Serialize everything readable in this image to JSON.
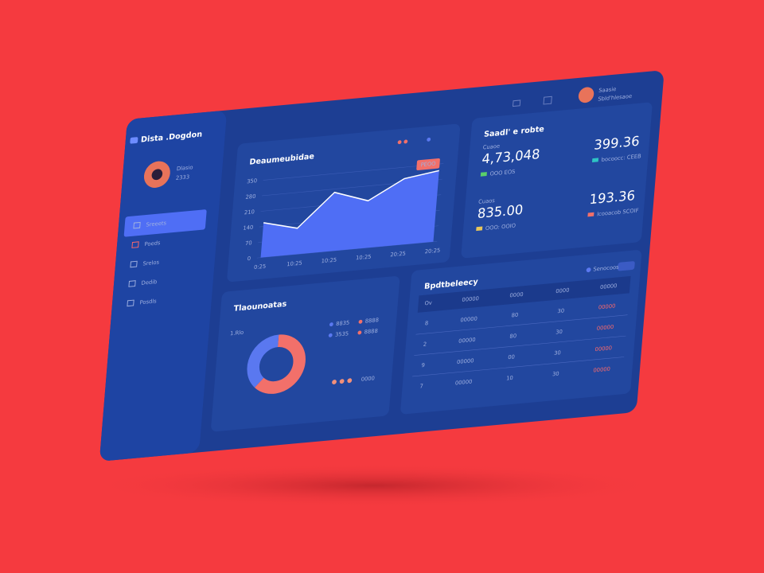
{
  "sidebar": {
    "brand": "Dista .Dogdon",
    "user": {
      "name": "Dlasio",
      "role": "2333"
    },
    "nav": [
      "Sreeets",
      "Poeds",
      "Srelos",
      "Dedib",
      "Posdls"
    ]
  },
  "topbar": {
    "user_name": "Saasie",
    "user_role": "Sbld'hlesaoe"
  },
  "area_chart": {
    "type": "area",
    "title": "Deaumeubidae",
    "categories": [
      "0:25",
      "10:25",
      "10:25",
      "10:25",
      "20:25",
      "20:25"
    ],
    "values": [
      157,
      118,
      265,
      213,
      298,
      320
    ],
    "ylim": [
      0,
      350
    ],
    "yticks": [
      0,
      70,
      140,
      210,
      280,
      350
    ],
    "color": "#4f6ef5",
    "badge": "PEOO",
    "grid": true
  },
  "stats": {
    "title": "Saadl' e robte",
    "items": [
      {
        "label": "Cuaoe",
        "value": "4,73,048",
        "note": "OOO EOS"
      },
      {
        "value": "399.36",
        "note": "bocoocc: CEEB"
      },
      {
        "label": "Cuaos",
        "value": "835.00",
        "note": "OOO: OOIO"
      },
      {
        "value": "193.36",
        "note": "Icooacob SCOIF"
      }
    ]
  },
  "donut": {
    "type": "pie",
    "title": "Tlaounoatas",
    "center_label": "1.Rlo",
    "values": [
      62,
      38
    ],
    "colors": [
      "#f2706a",
      "#5a78f0"
    ],
    "legend": [
      "8835",
      "8888",
      "3535",
      "8888"
    ],
    "footer": "0000"
  },
  "table": {
    "title": "Bpdtbeleecy",
    "filter": "Senocoos",
    "header": [
      "Ov",
      "00000",
      "0000",
      "0000",
      "00000"
    ],
    "rows": [
      [
        "8",
        "00000",
        "80",
        "30",
        "00000"
      ],
      [
        "2",
        "00000",
        "80",
        "30",
        "00000"
      ],
      [
        "9",
        "00000",
        "00",
        "30",
        "00000"
      ],
      [
        "7",
        "00000",
        "10",
        "30",
        "00000"
      ]
    ]
  }
}
